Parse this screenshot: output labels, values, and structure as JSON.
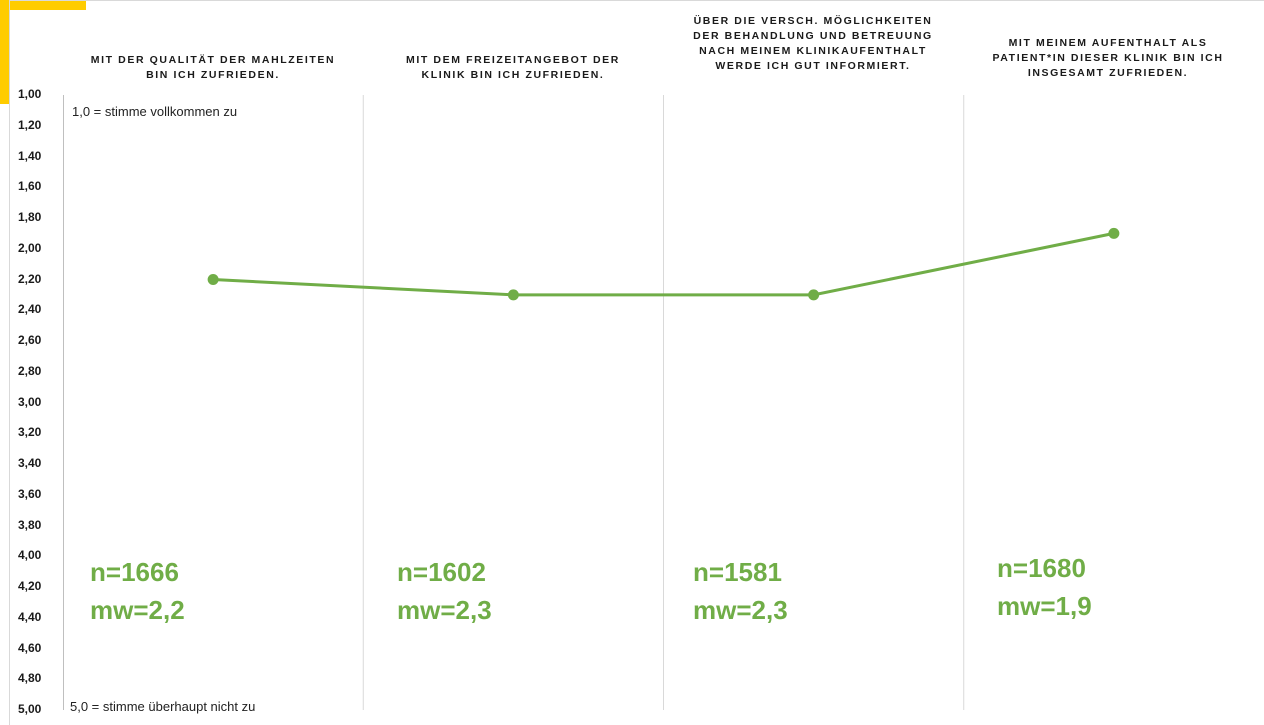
{
  "chart_data": {
    "type": "line",
    "categories": [
      "MIT DER QUALITÄT DER MAHLZEITEN\nBIN ICH ZUFRIEDEN.",
      "MIT DEM FREIZEITANGEBOT DER\nKLINIK BIN ICH ZUFRIEDEN.",
      "ÜBER DIE VERSCH. MÖGLICHKEITEN\nDER BEHANDLUNG UND BETREUUNG\nNACH MEINEM KLINIKAUFENTHALT\nWERDE ICH GUT INFORMIERT.",
      "MIT MEINEM AUFENTHALT ALS\nPATIENT*IN DIESER KLINIK BIN ICH\nINSGESAMT ZUFRIEDEN."
    ],
    "series": [
      {
        "values": [
          2.2,
          2.3,
          2.3,
          1.9
        ]
      }
    ],
    "ylim": [
      1,
      5
    ],
    "y_reversed": true,
    "y_ticks": [
      "1,00",
      "1,20",
      "1,40",
      "1,60",
      "1,80",
      "2,00",
      "2,20",
      "2,40",
      "2,60",
      "2,80",
      "3,00",
      "3,20",
      "3,40",
      "3,60",
      "3,80",
      "4,00",
      "4,20",
      "4,40",
      "4,60",
      "4,80",
      "5,00"
    ],
    "annotations": {
      "top": "1,0 = stimme vollkommen zu",
      "bottom": "5,0 = stimme überhaupt nicht zu"
    },
    "stats": [
      {
        "n": "n=1666",
        "mw": "mw=2,2"
      },
      {
        "n": "n=1602",
        "mw": "mw=2,3"
      },
      {
        "n": "n=1581",
        "mw": "mw=2,3"
      },
      {
        "n": "n=1680",
        "mw": "mw=1,9"
      }
    ],
    "colors": {
      "line": "#70ad47",
      "accent": "#ffcc00",
      "divider": "#d9d9d9"
    }
  }
}
